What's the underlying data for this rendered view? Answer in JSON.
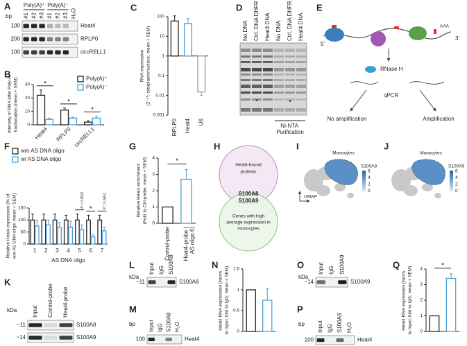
{
  "panel_labels": [
    "A",
    "B",
    "C",
    "D",
    "E",
    "F",
    "G",
    "H",
    "I",
    "J",
    "K",
    "L",
    "M",
    "N",
    "O",
    "P",
    "Q"
  ],
  "gels": {
    "A": {
      "unit": "bp",
      "groups": [
        "Poly(A)⁺",
        "Poly(A)⁻"
      ],
      "lanes": [
        "#1",
        "#2",
        "#3",
        "#1",
        "#2",
        "#3",
        "H₂O"
      ],
      "rows": [
        {
          "size": "100",
          "name": "Heat4"
        },
        {
          "size": "200",
          "name": "RPLP0"
        },
        {
          "size": "100",
          "name": "circRELL1"
        }
      ]
    },
    "K": {
      "unit": "kDa",
      "lanes": [
        "Input",
        "Control-probe",
        "Heat4-probe"
      ],
      "rows": [
        {
          "size": "~11",
          "name": "S100A8"
        },
        {
          "size": "~14",
          "name": "S100A9"
        }
      ]
    },
    "L": {
      "unit": "kDa",
      "lanes": [
        "Input",
        "IgG",
        "S100A8"
      ],
      "rows": [
        {
          "size": "~11",
          "name": "S100A8"
        }
      ]
    },
    "M": {
      "unit": "bp",
      "lanes": [
        "Input",
        "IgG",
        "S100A8",
        "H₂O"
      ],
      "rows": [
        {
          "size": "100",
          "name": "Heat4"
        }
      ]
    },
    "O": {
      "unit": "kDa",
      "lanes": [
        "Input",
        "IgG",
        "S100A9"
      ],
      "rows": [
        {
          "size": "~14",
          "name": "S100A9"
        }
      ]
    },
    "P": {
      "unit": "bp",
      "lanes": [
        "Input",
        "IgG",
        "S100A9",
        "H₂O"
      ],
      "rows": [
        {
          "size": "100",
          "name": "Heat4"
        }
      ]
    }
  },
  "blot_D": {
    "lanes": [
      "No DNA",
      "Ctrl. DNA DHFR",
      "Heat4 DNA",
      "No DNA",
      "Ctrl. DNA DHFR",
      "Heat4 DNA"
    ],
    "markers": [
      "*",
      "*"
    ],
    "bracket": "Ni-NTA Purification"
  },
  "diagram_E": {
    "five_prime": "5'",
    "poly_a": "AAA",
    "three_prime": "3'",
    "enzyme": "RNase H",
    "assay": "qPCR",
    "outcomes": [
      "No amplification",
      "Amplification"
    ]
  },
  "venn_H": {
    "set_a": [
      "Heat4-bound",
      "proteins"
    ],
    "overlap": [
      "S100A8",
      "S100A9"
    ],
    "set_b": [
      "Genes with high",
      "average expression in",
      "monocytes"
    ]
  },
  "umap": [
    {
      "cluster": "Monocytes",
      "gene": "S100A8",
      "colorbar_ticks": [
        6,
        4,
        2,
        0
      ],
      "axis": "UMAP"
    },
    {
      "cluster": "Monocytes",
      "gene": "S100A9",
      "colorbar_ticks": [
        6,
        4,
        2,
        0
      ]
    }
  ],
  "chart_data": [
    {
      "type": "bar",
      "ylabel": [
        "Intensity of RNA after Poly-A",
        "fractionation (mean + SEM)"
      ],
      "categories": [
        "Heat4",
        "RPLP0",
        "circRELL1"
      ],
      "series": [
        {
          "name": "Poly(A)⁺",
          "color": "#222222",
          "values": [
            22,
            11,
            2
          ],
          "errors": [
            4,
            1.5,
            1
          ]
        },
        {
          "name": "Poly(A)⁻",
          "color": "#4a9fd8",
          "values": [
            4,
            5,
            5
          ],
          "errors": [
            1,
            0.8,
            1.5
          ]
        }
      ],
      "significance": [
        "*",
        "*",
        "*"
      ],
      "ylim": [
        0,
        30
      ],
      "yticks": [
        0,
        10,
        20,
        30
      ]
    },
    {
      "type": "bar",
      "ylabel": [
        "RNA expression",
        "(2⁻ᶜᵀ; cytoplasm/nucleus; mean + SEM)"
      ],
      "categories": [
        "RPLP0",
        "Heat4",
        "U6"
      ],
      "values": [
        60,
        45,
        0.015
      ],
      "errors": [
        50,
        35,
        0.005
      ],
      "colors": [
        "#222222",
        "#4a9fd8",
        "#999999"
      ],
      "log": true,
      "ylim": [
        0.001,
        100
      ],
      "yticks": [
        0.001,
        0.01,
        0.1,
        1,
        10,
        100
      ]
    },
    {
      "type": "bar",
      "ylabel": [
        "Relative Heat4 expression (% of",
        "w/o AS DNA oligo; mean + SEM)"
      ],
      "xlabel": "AS DNA oligo",
      "categories": [
        "1",
        "2",
        "3",
        "4",
        "5",
        "6",
        "7"
      ],
      "series": [
        {
          "name": "w/o AS DNA oligo",
          "color": "#222222",
          "values": [
            100,
            100,
            100,
            100,
            100,
            100,
            100
          ],
          "errors": [
            25,
            25,
            25,
            20,
            25,
            20,
            20
          ]
        },
        {
          "name": "w/ AS DNA oligo",
          "color": "#4a9fd8",
          "values": [
            75,
            80,
            70,
            70,
            60,
            30,
            55
          ],
          "errors": [
            25,
            20,
            20,
            25,
            20,
            10,
            15
          ]
        }
      ],
      "significance": [
        null,
        null,
        null,
        null,
        "P = 0.0522",
        "*",
        "P = 0.0651"
      ],
      "ylim": [
        0,
        150
      ],
      "yticks": [
        0,
        50,
        100,
        150
      ]
    },
    {
      "type": "bar",
      "ylabel": [
        "Relative Heat4 enrichment",
        "(Fold to Ctrl-probe; mean + SEM)"
      ],
      "categories": [
        "Control-probe",
        "Heat4-probe (AS oligo 6)"
      ],
      "values": [
        1,
        2.7
      ],
      "errors": [
        0,
        0.6
      ],
      "colors": [
        "#222222",
        "#4a9fd8"
      ],
      "significance": "*",
      "ylim": [
        0,
        4
      ],
      "yticks": [
        0,
        1,
        2,
        3,
        4
      ]
    },
    {
      "type": "bar",
      "ylabel": [
        "Heat4 RNA expression (Norm.",
        "to Input; fold to IgG; mean + SEM)"
      ],
      "categories": [
        null,
        null
      ],
      "values": [
        1,
        0.75
      ],
      "errors": [
        0,
        0.28
      ],
      "colors": [
        "#222222",
        "#4a9fd8"
      ],
      "ylim": [
        0,
        1.5
      ],
      "yticks": [
        0,
        0.5,
        1,
        1.5
      ]
    },
    {
      "type": "bar",
      "ylabel": [
        "Heat4 RNA expression (Norm.",
        "to Input; fold to IgG; mean + SEM)"
      ],
      "categories": [
        null,
        null
      ],
      "values": [
        1,
        3.4
      ],
      "errors": [
        0,
        0.3
      ],
      "colors": [
        "#222222",
        "#4a9fd8"
      ],
      "significance": "*",
      "ylim": [
        0,
        4
      ],
      "yticks": [
        0,
        1,
        2,
        3,
        4
      ]
    }
  ]
}
